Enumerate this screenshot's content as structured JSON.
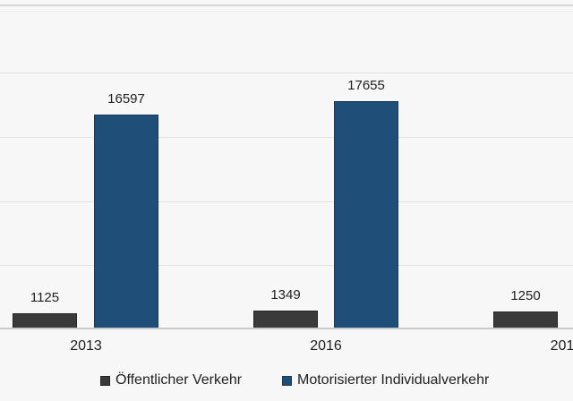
{
  "chart_data": {
    "type": "bar",
    "categories": [
      "2013",
      "2016",
      "201"
    ],
    "series": [
      {
        "name": "Öffentlicher Verkehr",
        "color": "#3a3a3a",
        "border_color": "#242424",
        "values": [
          1125,
          1349,
          1250
        ]
      },
      {
        "name": "Motorisierter Individualverkehr",
        "color": "#1f4e79",
        "border_color": "#17395c",
        "values": [
          16597,
          17655,
          null
        ]
      }
    ],
    "value_labels": [
      [
        "1125",
        "1349",
        "1250"
      ],
      [
        "16597",
        "17655",
        null
      ]
    ],
    "title": "",
    "xlabel": "",
    "ylabel": "",
    "ylim": [
      0,
      25000
    ],
    "gridline_step": 5000,
    "grid": true,
    "legend_position": "bottom",
    "y_axis_tick_labels_visible": false
  },
  "colors": {
    "background": "#f7f7f7",
    "gridline": "#e2e2e2",
    "axis_line": "#c9c9c9",
    "text": "#212121"
  }
}
